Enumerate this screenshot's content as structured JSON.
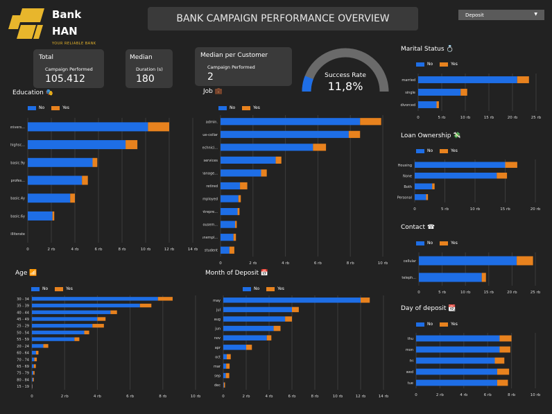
{
  "header": {
    "brand_line1": "Bank",
    "brand_line2": "HAN",
    "tagline": "YOUR RELIABLE BANK",
    "title": "BANK CAMPAIGN PERFORMANCE OVERVIEW",
    "dropdown_value": "Deposit"
  },
  "cards": {
    "total": {
      "title": "Total",
      "subtitle": "Campaign Performed",
      "value": "105.412"
    },
    "median": {
      "title": "Median",
      "subtitle": "Duration (s)",
      "value": "180"
    },
    "median_customer": {
      "title": "Median per Customer",
      "subtitle": "Campaign Performed",
      "value": "2"
    }
  },
  "gauge": {
    "label": "Success Rate",
    "value_text": "11,8%",
    "value": 0.118
  },
  "colors": {
    "no": "#1e6ee6",
    "yes": "#e8821e",
    "background": "#222222",
    "card": "#3a3a3a"
  },
  "legend": {
    "no": "No",
    "yes": "Yes"
  },
  "section_titles": {
    "education": "Education 🎭",
    "job": "Job 💼",
    "age": "Age 📶",
    "month": "Month of Deposit 📅",
    "marital": "Marital Status 💍",
    "loan": "Loan Ownership 💸",
    "contact": "Contact ☎",
    "day": "Day of deposit 📆"
  },
  "chart_data": [
    {
      "id": "education",
      "type": "bar",
      "orientation": "horizontal",
      "stacked": true,
      "categories": [
        "univers...",
        "highsc...",
        "basic.9y",
        "profes...",
        "basic.4y",
        "basic.6y",
        "illiterate"
      ],
      "series": [
        {
          "name": "No",
          "values": [
            10.2,
            8.3,
            5.5,
            4.6,
            3.6,
            2.1,
            0.0
          ]
        },
        {
          "name": "Yes",
          "values": [
            1.8,
            1.0,
            0.4,
            0.5,
            0.4,
            0.15,
            0.0
          ]
        }
      ],
      "xlim": [
        0,
        14
      ],
      "ticks": [
        0,
        2,
        4,
        6,
        8,
        10,
        12,
        14
      ],
      "tick_labels": [
        "0",
        "2 rb",
        "4 rb",
        "6 rb",
        "8 rb",
        "10 rb",
        "12 rb",
        "14 rb"
      ]
    },
    {
      "id": "job",
      "type": "bar",
      "orientation": "horizontal",
      "stacked": true,
      "categories": [
        "admin.",
        "blue-collar",
        "technici...",
        "services",
        "manage...",
        "retired",
        "self-employed",
        "entrepre...",
        "housem...",
        "unempl...",
        "student"
      ],
      "series": [
        {
          "name": "No",
          "values": [
            8.6,
            7.9,
            5.7,
            3.4,
            2.5,
            1.2,
            1.1,
            1.05,
            0.9,
            0.8,
            0.55
          ]
        },
        {
          "name": "Yes",
          "values": [
            1.3,
            0.7,
            0.8,
            0.35,
            0.35,
            0.45,
            0.15,
            0.12,
            0.1,
            0.15,
            0.3
          ]
        }
      ],
      "xlim": [
        0,
        10
      ],
      "ticks": [
        0,
        2,
        4,
        6,
        8,
        10
      ],
      "tick_labels": [
        "0",
        "2 rb",
        "4 rb",
        "6 rb",
        "8 rb",
        "10 rb"
      ]
    },
    {
      "id": "age",
      "type": "bar",
      "orientation": "horizontal",
      "stacked": true,
      "categories": [
        "30 - 34",
        "35 - 39",
        "40 - 44",
        "45 - 49",
        "25 - 29",
        "50 - 54",
        "55 - 59",
        "20 - 24",
        "60 - 64",
        "70 - 74",
        "65 - 69",
        "75 - 79",
        "80 - 84",
        "15 - 19"
      ],
      "series": [
        {
          "name": "No",
          "values": [
            7.7,
            6.6,
            4.8,
            4.0,
            3.7,
            3.2,
            2.6,
            0.7,
            0.25,
            0.15,
            0.12,
            0.08,
            0.06,
            0.02
          ]
        },
        {
          "name": "Yes",
          "values": [
            0.9,
            0.7,
            0.4,
            0.5,
            0.7,
            0.3,
            0.3,
            0.3,
            0.15,
            0.15,
            0.12,
            0.08,
            0.06,
            0.02
          ]
        }
      ],
      "xlim": [
        0,
        10
      ],
      "ticks": [
        0,
        2,
        4,
        6,
        8,
        10
      ],
      "tick_labels": [
        "0",
        "2 rb",
        "4 rb",
        "6 rb",
        "8 rb",
        "10 rb"
      ]
    },
    {
      "id": "month",
      "type": "bar",
      "orientation": "horizontal",
      "stacked": true,
      "categories": [
        "may",
        "jul",
        "aug",
        "jun",
        "nov",
        "apr",
        "oct",
        "mar",
        "sep",
        "dec"
      ],
      "series": [
        {
          "name": "No",
          "values": [
            12.0,
            6.0,
            5.4,
            4.4,
            3.8,
            2.0,
            0.3,
            0.25,
            0.22,
            0.05
          ]
        },
        {
          "name": "Yes",
          "values": [
            0.8,
            0.6,
            0.6,
            0.6,
            0.4,
            0.5,
            0.35,
            0.3,
            0.3,
            0.1
          ]
        }
      ],
      "xlim": [
        0,
        14
      ],
      "ticks": [
        0,
        2,
        4,
        6,
        8,
        10,
        12,
        14
      ],
      "tick_labels": [
        "0",
        "2 rb",
        "4 rb",
        "6 rb",
        "8 rb",
        "10 rb",
        "12 rb",
        "14 rb"
      ]
    },
    {
      "id": "marital",
      "type": "bar",
      "orientation": "horizontal",
      "stacked": true,
      "categories": [
        "married",
        "single",
        "divorced"
      ],
      "series": [
        {
          "name": "No",
          "values": [
            21.0,
            9.0,
            3.9
          ]
        },
        {
          "name": "Yes",
          "values": [
            2.5,
            1.4,
            0.5
          ]
        }
      ],
      "xlim": [
        0,
        25
      ],
      "ticks": [
        0,
        5,
        10,
        15,
        20,
        25
      ],
      "tick_labels": [
        "0",
        "5 rb",
        "10 rb",
        "15 rb",
        "20 rb",
        "25 rb"
      ]
    },
    {
      "id": "loan",
      "type": "bar",
      "orientation": "horizontal",
      "stacked": true,
      "categories": [
        "Housing",
        "None",
        "Both",
        "Personal"
      ],
      "series": [
        {
          "name": "No",
          "values": [
            15.0,
            13.6,
            2.9,
            1.9
          ]
        },
        {
          "name": "Yes",
          "values": [
            2.0,
            1.7,
            0.4,
            0.3
          ]
        }
      ],
      "xlim": [
        0,
        20
      ],
      "ticks": [
        0,
        5,
        10,
        15,
        20
      ],
      "tick_labels": [
        "0",
        "5 rb",
        "10 rb",
        "15 rb",
        "20 rb"
      ]
    },
    {
      "id": "contact",
      "type": "bar",
      "orientation": "horizontal",
      "stacked": true,
      "categories": [
        "cellular",
        "teleph..."
      ],
      "series": [
        {
          "name": "No",
          "values": [
            21.0,
            13.5
          ]
        },
        {
          "name": "Yes",
          "values": [
            3.5,
            0.9
          ]
        }
      ],
      "xlim": [
        0,
        25
      ],
      "ticks": [
        0,
        5,
        10,
        15,
        20,
        25
      ],
      "tick_labels": [
        "0",
        "5 rb",
        "10 rb",
        "15 rb",
        "20 rb",
        "25 rb"
      ]
    },
    {
      "id": "day",
      "type": "bar",
      "orientation": "horizontal",
      "stacked": true,
      "categories": [
        "thu",
        "mon",
        "fri",
        "wed",
        "tue"
      ],
      "series": [
        {
          "name": "No",
          "values": [
            7.0,
            7.0,
            6.6,
            6.8,
            6.8
          ]
        },
        {
          "name": "Yes",
          "values": [
            1.0,
            0.9,
            0.8,
            1.0,
            0.9
          ]
        }
      ],
      "xlim": [
        0,
        10
      ],
      "ticks": [
        0,
        2,
        4,
        6,
        8,
        10
      ],
      "tick_labels": [
        "0",
        "2 rb",
        "4 rb",
        "6 rb",
        "8 rb",
        "10 rb"
      ]
    }
  ]
}
